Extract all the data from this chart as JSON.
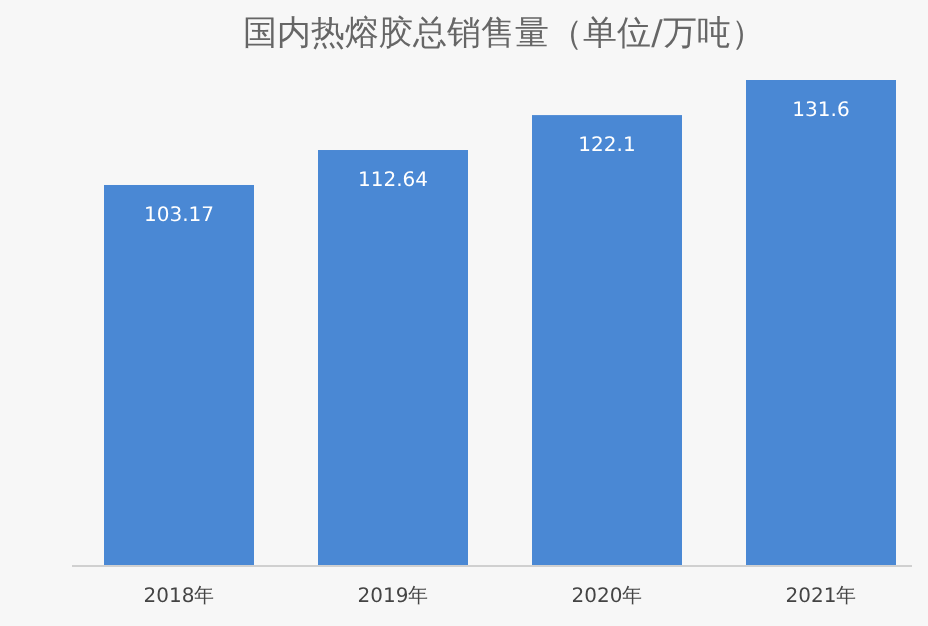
{
  "chart_data": {
    "type": "bar",
    "title": "国内热熔胶总销售量（单位/万吨）",
    "categories": [
      "2018年",
      "2019年",
      "2020年",
      "2021年"
    ],
    "values": [
      103.17,
      112.64,
      122.1,
      131.6
    ],
    "color": "#4a88d4",
    "data_labels": true,
    "relative": false
  }
}
